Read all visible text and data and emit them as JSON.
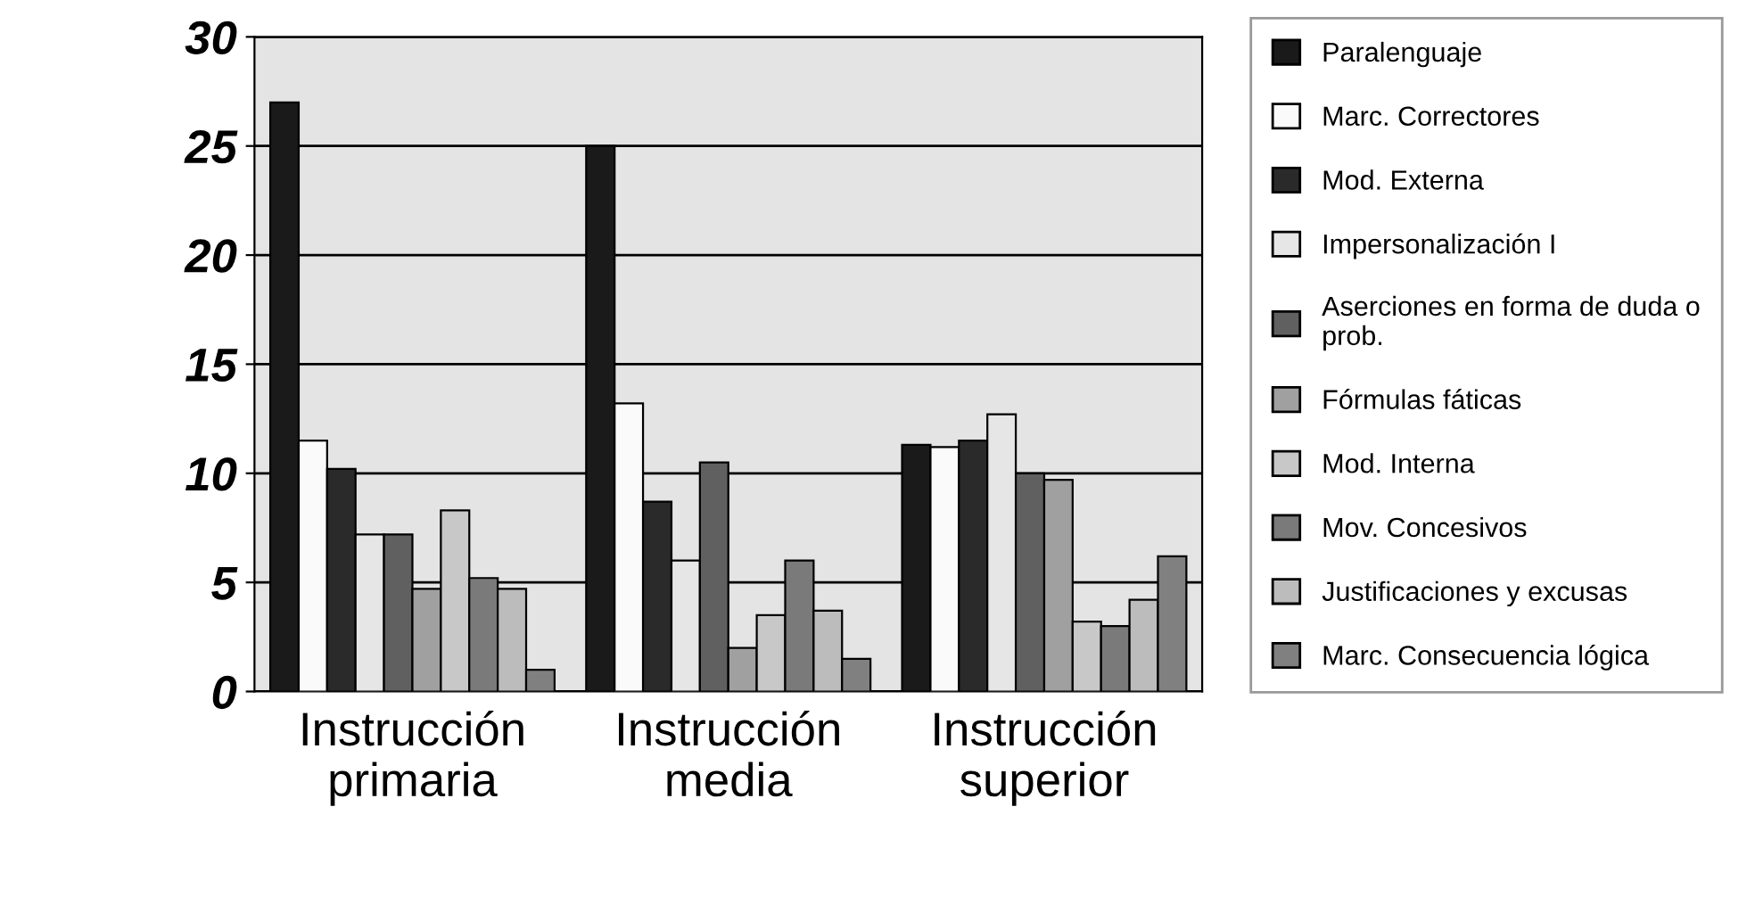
{
  "chart_data": {
    "type": "bar",
    "categories": [
      "Instrucción\nprimaria",
      "Instrucción\nmedia",
      "Instrucción\nsuperior"
    ],
    "series": [
      {
        "name": "Paralenguaje",
        "color": "#1a1a1a",
        "values": [
          27,
          25,
          11.3
        ]
      },
      {
        "name": "Marc. Correctores",
        "color": "#fafafa",
        "values": [
          11.5,
          13.2,
          11.2
        ]
      },
      {
        "name": "Mod. Externa",
        "color": "#2a2a2a",
        "values": [
          10.2,
          8.7,
          11.5
        ]
      },
      {
        "name": "Impersonalización I",
        "color": "#e6e6e6",
        "values": [
          7.2,
          6,
          12.7
        ]
      },
      {
        "name": "Aserciones en forma de duda o\nprob.",
        "color": "#606060",
        "values": [
          7.2,
          10.5,
          10
        ]
      },
      {
        "name": "Fórmulas fáticas",
        "color": "#a0a0a0",
        "values": [
          4.7,
          2,
          9.7
        ]
      },
      {
        "name": "Mod. Interna",
        "color": "#c8c8c8",
        "values": [
          8.3,
          3.5,
          3.2
        ]
      },
      {
        "name": "Mov. Concesivos",
        "color": "#7a7a7a",
        "values": [
          5.2,
          6,
          3
        ]
      },
      {
        "name": "Justificaciones y excusas",
        "color": "#bcbcbc",
        "values": [
          4.7,
          3.7,
          4.2
        ]
      },
      {
        "name": "Marc. Consecuencia lógica",
        "color": "#808080",
        "values": [
          1,
          1.5,
          6.2
        ]
      }
    ],
    "ylim": [
      0,
      30
    ],
    "yticks": [
      0,
      5,
      10,
      15,
      20,
      25,
      30
    ],
    "grid": "y",
    "legend": "right"
  }
}
